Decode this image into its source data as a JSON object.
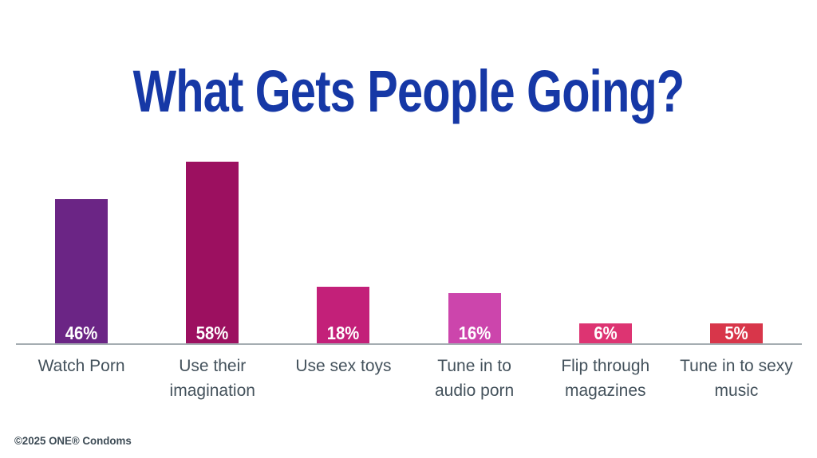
{
  "footer": "©2025 ONE® Condoms",
  "chart_data": {
    "type": "bar",
    "title": "What Gets People Going?",
    "categories": [
      "Watch Porn",
      "Use their imagination",
      "Use sex toys",
      "Tune in to audio porn",
      "Flip through magazines",
      "Tune in to sexy music"
    ],
    "values": [
      46,
      58,
      18,
      16,
      6,
      5
    ],
    "value_labels": [
      "46%",
      "58%",
      "18%",
      "16%",
      "6%",
      "5%"
    ],
    "bar_colors": [
      "#6B2585",
      "#9C1060",
      "#C32079",
      "#CC45AC",
      "#DD3472",
      "#D8364A"
    ],
    "xlabel": "",
    "ylabel": "",
    "ylim": [
      0,
      60
    ],
    "grid": false,
    "legend": false,
    "value_label_position": "inside-bottom",
    "colors": {
      "title_text": "#1638A6",
      "category_label_text": "#44525C",
      "axis_line": "#A5ADB2",
      "value_label_text": "#FFFFFF",
      "footer_text": "#3D4B55",
      "background": "#FFFFFF"
    }
  }
}
